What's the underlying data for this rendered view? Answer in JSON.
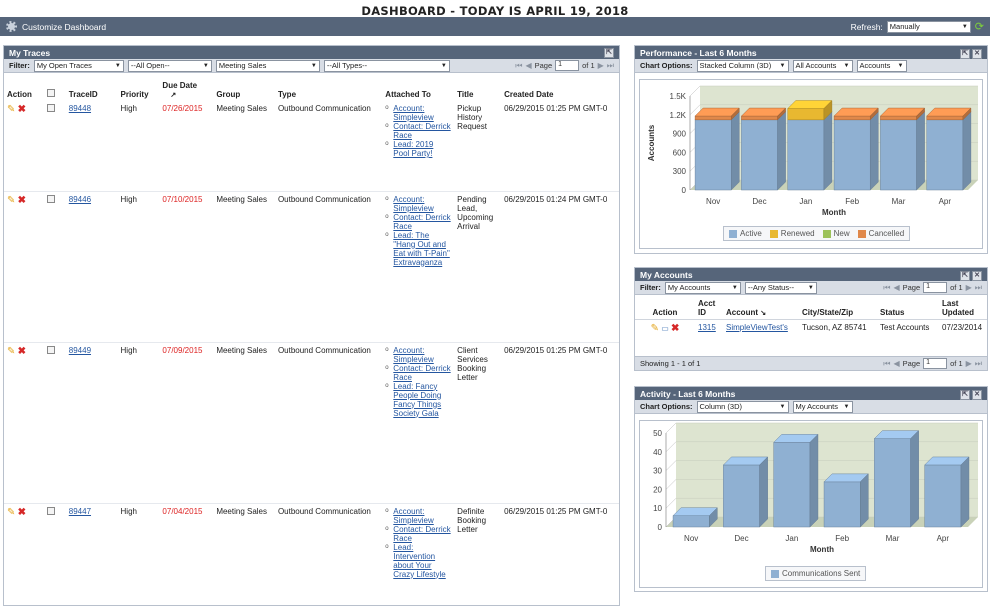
{
  "page": {
    "title": "DASHBOARD - TODAY IS APRIL 19, 2018"
  },
  "customize": {
    "label": "Customize Dashboard",
    "refresh_label": "Refresh:",
    "refresh_value": "Manually"
  },
  "traces": {
    "title": "My Traces",
    "filter_label": "Filter:",
    "filters": [
      "My Open Traces",
      "--All Open--",
      "Meeting Sales",
      "--All Types--"
    ],
    "page_label": "Page",
    "page_value": "1",
    "of_label": "of 1",
    "columns": [
      "Action",
      "",
      "TraceID",
      "Priority",
      "Due Date",
      "Group",
      "Type",
      "Attached To",
      "Title",
      "Created Date"
    ],
    "rows": [
      {
        "id": "89448",
        "priority": "High",
        "due": "07/26/2015",
        "group": "Meeting Sales",
        "type": "Outbound Communication",
        "attached": [
          "Account: Simpleview",
          "Contact: Derrick Race",
          "Lead: 2019 Pool Party!"
        ],
        "title": "Pickup History Request",
        "created": "06/29/2015 01:25 PM GMT-0"
      },
      {
        "id": "89446",
        "priority": "High",
        "due": "07/10/2015",
        "group": "Meeting Sales",
        "type": "Outbound Communication",
        "attached": [
          "Account: Simpleview",
          "Contact: Derrick Race",
          "Lead: The \"Hang Out and Eat with T-Pain\" Extravaganza"
        ],
        "title": "Pending Lead, Upcoming Arrival",
        "created": "06/29/2015 01:24 PM GMT-0"
      },
      {
        "id": "89449",
        "priority": "High",
        "due": "07/09/2015",
        "group": "Meeting Sales",
        "type": "Outbound Communication",
        "attached": [
          "Account: Simpleview",
          "Contact: Derrick Race",
          "Lead: Fancy People Doing Fancy Things Society Gala"
        ],
        "title": "Client Services Booking Letter",
        "created": "06/29/2015 01:25 PM GMT-0"
      },
      {
        "id": "89447",
        "priority": "High",
        "due": "07/04/2015",
        "group": "Meeting Sales",
        "type": "Outbound Communication",
        "attached": [
          "Account: Simpleview",
          "Contact: Derrick Race",
          "Lead: Intervention about Your Crazy Lifestyle"
        ],
        "title": "Definite Booking Letter",
        "created": "06/29/2015 01:25 PM GMT-0"
      }
    ]
  },
  "performance": {
    "title": "Performance - Last 6 Months",
    "options_label": "Chart Options:",
    "options": [
      "Stacked Column (3D)",
      "All Accounts",
      "Accounts"
    ],
    "legend": [
      "Active",
      "Renewed",
      "New",
      "Cancelled"
    ],
    "colors": {
      "active": "#8fb0d2",
      "cancelled": "#e0884a",
      "renewed": "#e8b830",
      "new": "#9cc25a"
    }
  },
  "accounts": {
    "title": "My Accounts",
    "filter_label": "Filter:",
    "filters": [
      "My Accounts",
      "--Any Status--"
    ],
    "page_label": "Page",
    "page_value": "1",
    "of_label": "of 1",
    "columns": [
      "Action",
      "Acct ID",
      "Account",
      "City/State/Zip",
      "Status",
      "Last Updated"
    ],
    "row": {
      "id": "1315",
      "account": "SimpleViewTest's",
      "city": "Tucson, AZ 85741",
      "status": "Test Accounts",
      "updated": "07/23/2014"
    },
    "showing": "Showing 1 - 1 of 1"
  },
  "activity": {
    "title": "Activity - Last 6 Months",
    "options_label": "Chart Options:",
    "options": [
      "Column (3D)",
      "My Accounts"
    ],
    "legend": [
      "Communications Sent"
    ]
  },
  "chart_data": [
    {
      "type": "bar",
      "title": "Performance - Last 6 Months",
      "subtype": "stacked 3D column",
      "categories": [
        "Nov",
        "Dec",
        "Jan",
        "Feb",
        "Mar",
        "Apr"
      ],
      "xlabel": "Month",
      "ylabel": "Accounts",
      "ylim": [
        0,
        1500
      ],
      "yticks": [
        "0",
        "300",
        "600",
        "900",
        "1.2K",
        "1.5K"
      ],
      "series": [
        {
          "name": "Active",
          "values": [
            1120,
            1120,
            1120,
            1120,
            1120,
            1120
          ]
        },
        {
          "name": "Renewed",
          "values": [
            0,
            0,
            180,
            0,
            0,
            0
          ]
        },
        {
          "name": "New",
          "values": [
            0,
            0,
            0,
            0,
            0,
            0
          ]
        },
        {
          "name": "Cancelled",
          "values": [
            60,
            60,
            0,
            60,
            60,
            60
          ]
        }
      ]
    },
    {
      "type": "bar",
      "title": "Activity - Last 6 Months",
      "subtype": "3D column",
      "categories": [
        "Nov",
        "Dec",
        "Jan",
        "Feb",
        "Mar",
        "Apr"
      ],
      "xlabel": "Month",
      "ylabel": "",
      "ylim": [
        0,
        50
      ],
      "yticks": [
        "0",
        "10",
        "20",
        "30",
        "40",
        "50"
      ],
      "series": [
        {
          "name": "Communications Sent",
          "values": [
            6,
            33,
            45,
            24,
            47,
            33
          ]
        }
      ]
    }
  ]
}
